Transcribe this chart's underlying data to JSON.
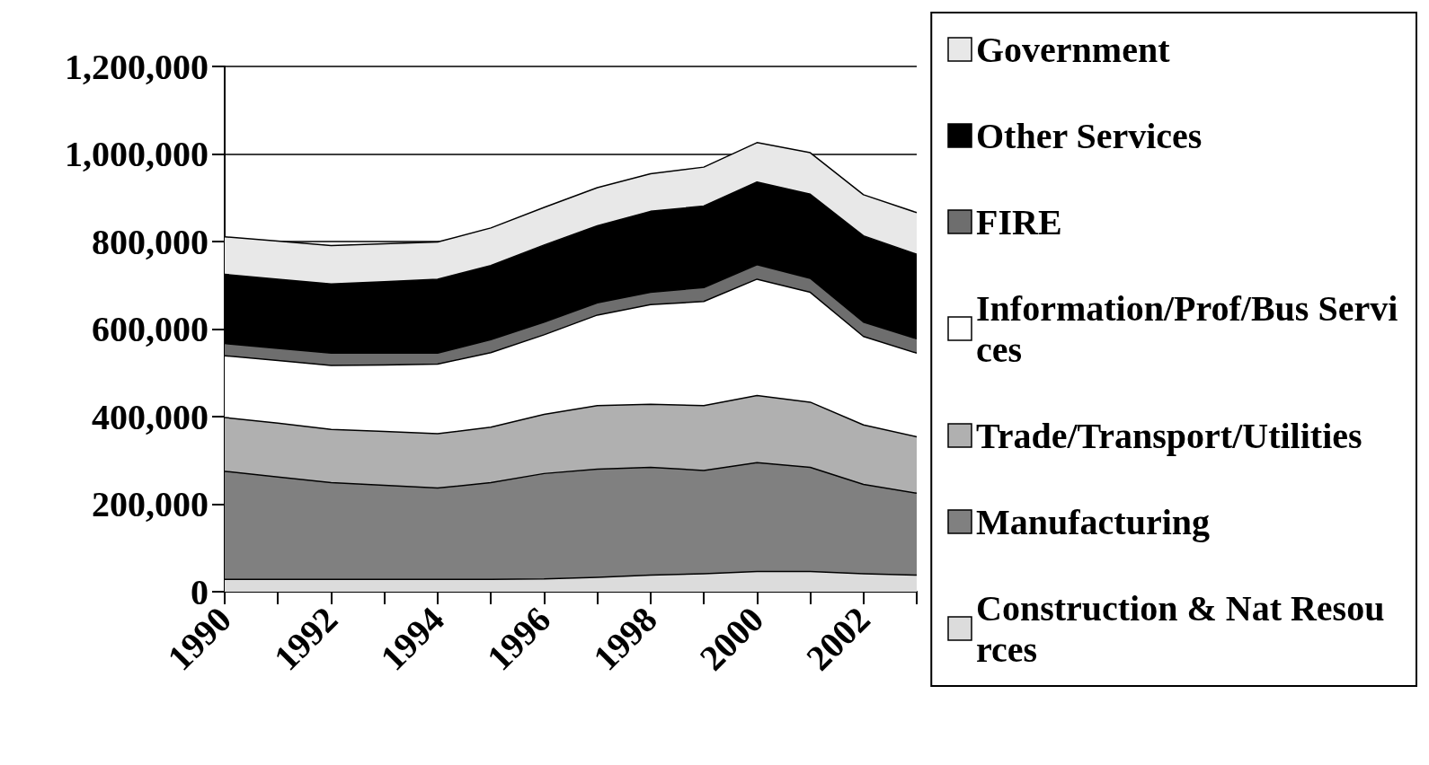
{
  "chart_data": {
    "type": "area",
    "stacked": true,
    "categories": [
      "1990",
      null,
      "1992",
      null,
      "1994",
      null,
      "1996",
      null,
      "1998",
      null,
      "2000",
      null,
      "2002",
      null
    ],
    "ylim": [
      0,
      1200000
    ],
    "yticks": [
      {
        "value": 0,
        "label": "0"
      },
      {
        "value": 200000,
        "label": "200,000"
      },
      {
        "value": 400000,
        "label": "400,000"
      },
      {
        "value": 600000,
        "label": "600,000"
      },
      {
        "value": 800000,
        "label": "800,000"
      },
      {
        "value": 1000000,
        "label": "1,000,000"
      },
      {
        "value": 1200000,
        "label": "1,200,000"
      }
    ],
    "grid": "y",
    "legend": "right",
    "series": [
      {
        "name": "Construction & Nat Resources",
        "color": "#dcdcdc",
        "values": [
          28000,
          28000,
          28000,
          28000,
          28000,
          28000,
          29000,
          33000,
          38000,
          41000,
          46000,
          46000,
          41000,
          38000
        ]
      },
      {
        "name": "Manufacturing",
        "color": "#808080",
        "values": [
          247000,
          234000,
          221000,
          215000,
          209000,
          221000,
          241000,
          247000,
          246000,
          236000,
          249000,
          238000,
          204000,
          187000
        ]
      },
      {
        "name": "Trade/Transport/Utilities",
        "color": "#b0b0b0",
        "values": [
          123000,
          123000,
          122000,
          123000,
          124000,
          127000,
          135000,
          145000,
          144000,
          148000,
          153000,
          149000,
          136000,
          129000
        ]
      },
      {
        "name": "Information/Prof/Bus Services",
        "color": "#ffffff",
        "values": [
          141000,
          143000,
          146000,
          152000,
          159000,
          170000,
          182000,
          207000,
          228000,
          238000,
          266000,
          251000,
          202000,
          191000
        ]
      },
      {
        "name": "FIRE",
        "color": "#6e6e6e",
        "values": [
          28000,
          28000,
          28000,
          27000,
          25000,
          30000,
          29000,
          28000,
          28000,
          32000,
          33000,
          32000,
          33000,
          33000
        ]
      },
      {
        "name": "Other Services",
        "color": "#000000",
        "values": [
          158000,
          158000,
          158000,
          163000,
          169000,
          169000,
          176000,
          176000,
          185000,
          186000,
          189000,
          192000,
          197000,
          193000
        ]
      },
      {
        "name": "Government",
        "color": "#e8e8e8",
        "values": [
          86000,
          87000,
          88000,
          87000,
          85000,
          86000,
          86000,
          87000,
          86000,
          89000,
          90000,
          95000,
          94000,
          95000
        ]
      }
    ]
  }
}
